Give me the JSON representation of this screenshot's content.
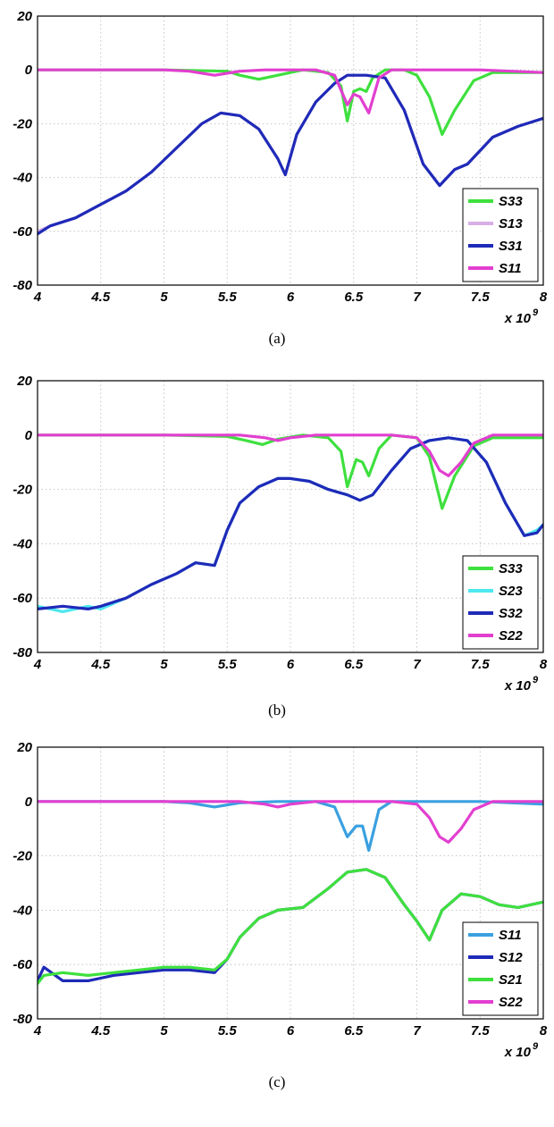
{
  "chart_data": [
    {
      "type": "line",
      "caption": "(a)",
      "x_scale_label": "x 10",
      "x_scale_exponent": "9",
      "xlim": [
        4,
        8
      ],
      "ylim": [
        -80,
        20
      ],
      "x_ticks": [
        "4",
        "4.5",
        "5",
        "5.5",
        "6",
        "6.5",
        "7",
        "7.5",
        "8"
      ],
      "y_ticks": [
        "20",
        "0",
        "-20",
        "-40",
        "-60",
        "-80"
      ],
      "grid": true,
      "legend_position": "bottom-right",
      "series": [
        {
          "name": "S33",
          "color": "#3ee03e",
          "x": [
            4,
            5,
            5.5,
            5.6,
            5.75,
            5.9,
            6.1,
            6.3,
            6.4,
            6.45,
            6.5,
            6.55,
            6.6,
            6.65,
            6.75,
            6.9,
            7.0,
            7.1,
            7.2,
            7.3,
            7.45,
            7.6,
            8
          ],
          "y": [
            0,
            0,
            -0.5,
            -2,
            -3.5,
            -2,
            0,
            -1,
            -6,
            -19,
            -8,
            -7,
            -8,
            -3,
            0,
            0,
            -2,
            -10,
            -24,
            -15,
            -4,
            -1,
            -1
          ]
        },
        {
          "name": "S13",
          "color": "#d8aee8",
          "x": [
            4,
            4.1,
            4.3,
            4.5,
            4.7,
            4.9,
            5.1,
            5.3,
            5.45,
            5.6,
            5.75,
            5.9,
            5.96,
            6.05,
            6.2,
            6.35,
            6.45,
            6.6,
            6.75,
            6.9,
            7.05,
            7.18,
            7.3,
            7.4,
            7.5,
            7.6,
            7.8,
            8
          ],
          "y": [
            -60,
            -58,
            -55,
            -50,
            -45,
            -38,
            -29,
            -20,
            -16,
            -17,
            -22,
            -33,
            -39,
            -24,
            -12,
            -5,
            -2,
            -2,
            -3,
            -15,
            -35,
            -43,
            -37,
            -35,
            -30,
            -25,
            -21,
            -18
          ]
        },
        {
          "name": "S31",
          "color": "#1f2ab8",
          "x": [
            4,
            4.1,
            4.3,
            4.5,
            4.7,
            4.9,
            5.1,
            5.3,
            5.45,
            5.6,
            5.75,
            5.9,
            5.96,
            6.05,
            6.2,
            6.35,
            6.45,
            6.6,
            6.75,
            6.9,
            7.05,
            7.18,
            7.3,
            7.4,
            7.5,
            7.6,
            7.8,
            8
          ],
          "y": [
            -61,
            -58,
            -55,
            -50,
            -45,
            -38,
            -29,
            -20,
            -16,
            -17,
            -22,
            -33,
            -39,
            -24,
            -12,
            -5,
            -2,
            -2,
            -3,
            -15,
            -35,
            -43,
            -37,
            -35,
            -30,
            -25,
            -21,
            -18
          ]
        },
        {
          "name": "S11",
          "color": "#e23fd0",
          "x": [
            4,
            5,
            5.2,
            5.4,
            5.6,
            5.8,
            6.2,
            6.35,
            6.45,
            6.5,
            6.55,
            6.62,
            6.7,
            6.8,
            7.5,
            8
          ],
          "y": [
            0,
            0,
            -0.5,
            -2,
            -0.5,
            0,
            0,
            -2,
            -13,
            -9,
            -10,
            -16,
            -3,
            0,
            0,
            -1
          ]
        }
      ]
    },
    {
      "type": "line",
      "caption": "(b)",
      "x_scale_label": "x 10",
      "x_scale_exponent": "9",
      "xlim": [
        4,
        8
      ],
      "ylim": [
        -80,
        20
      ],
      "x_ticks": [
        "4",
        "4.5",
        "5",
        "5.5",
        "6",
        "6.5",
        "7",
        "7.5",
        "8"
      ],
      "y_ticks": [
        "20",
        "0",
        "-20",
        "-40",
        "-60",
        "-80"
      ],
      "grid": true,
      "legend_position": "bottom-right",
      "series": [
        {
          "name": "S33",
          "color": "#3ee03e",
          "x": [
            4,
            5,
            5.5,
            5.65,
            5.78,
            5.9,
            6.1,
            6.3,
            6.4,
            6.45,
            6.52,
            6.57,
            6.62,
            6.7,
            6.8,
            7.0,
            7.1,
            7.2,
            7.3,
            7.45,
            7.6,
            8
          ],
          "y": [
            0,
            0,
            -0.5,
            -2,
            -3.5,
            -1.5,
            0,
            -1,
            -6,
            -19,
            -9,
            -10,
            -15,
            -5,
            0,
            -1,
            -8,
            -27,
            -15,
            -4,
            -1,
            -1
          ]
        },
        {
          "name": "S23",
          "color": "#4de8f0",
          "x": [
            4,
            4.2,
            4.4,
            4.5,
            4.7,
            4.9,
            5.1,
            5.25,
            5.4,
            5.5,
            5.6,
            5.75,
            5.9,
            6.0,
            6.15,
            6.3,
            6.45,
            6.55,
            6.65,
            6.8,
            6.95,
            7.1,
            7.25,
            7.4,
            7.55,
            7.7,
            7.85,
            7.95,
            8
          ],
          "y": [
            -63,
            -65,
            -63,
            -64,
            -60,
            -55,
            -51,
            -47,
            -48,
            -35,
            -25,
            -19,
            -16,
            -16,
            -17,
            -20,
            -22,
            -24,
            -22,
            -13,
            -5,
            -2,
            -1,
            -2,
            -10,
            -25,
            -37,
            -35,
            -33
          ]
        },
        {
          "name": "S32",
          "color": "#1f2ab8",
          "x": [
            4,
            4.2,
            4.4,
            4.5,
            4.7,
            4.9,
            5.1,
            5.25,
            5.4,
            5.5,
            5.6,
            5.75,
            5.9,
            6.0,
            6.15,
            6.3,
            6.45,
            6.55,
            6.65,
            6.8,
            6.95,
            7.1,
            7.25,
            7.4,
            7.55,
            7.7,
            7.85,
            7.95,
            8
          ],
          "y": [
            -64,
            -63,
            -64,
            -63,
            -60,
            -55,
            -51,
            -47,
            -48,
            -35,
            -25,
            -19,
            -16,
            -16,
            -17,
            -20,
            -22,
            -24,
            -22,
            -13,
            -5,
            -2,
            -1,
            -2,
            -10,
            -25,
            -37,
            -36,
            -33
          ]
        },
        {
          "name": "S22",
          "color": "#e23fd0",
          "x": [
            4,
            5,
            5.6,
            5.8,
            5.9,
            6.0,
            6.2,
            6.8,
            7.0,
            7.1,
            7.18,
            7.25,
            7.35,
            7.45,
            7.6,
            8
          ],
          "y": [
            0,
            0,
            0,
            -1,
            -2,
            -1,
            0,
            0,
            -1,
            -6,
            -13,
            -15,
            -10,
            -3,
            0,
            0
          ]
        }
      ]
    },
    {
      "type": "line",
      "caption": "(c)",
      "x_scale_label": "x 10",
      "x_scale_exponent": "9",
      "xlim": [
        4,
        8
      ],
      "ylim": [
        -80,
        20
      ],
      "x_ticks": [
        "4",
        "4.5",
        "5",
        "5.5",
        "6",
        "6.5",
        "7",
        "7.5",
        "8"
      ],
      "y_ticks": [
        "20",
        "0",
        "-20",
        "-40",
        "-60",
        "-80"
      ],
      "grid": true,
      "legend_position": "bottom-right",
      "series": [
        {
          "name": "S11",
          "color": "#3aa0e0",
          "x": [
            4,
            5,
            5.2,
            5.4,
            5.6,
            5.9,
            6.2,
            6.35,
            6.45,
            6.52,
            6.57,
            6.62,
            6.7,
            6.8,
            7.5,
            8
          ],
          "y": [
            0,
            0,
            -0.5,
            -2,
            -0.5,
            0,
            0,
            -2,
            -13,
            -9,
            -9,
            -18,
            -3,
            0,
            0,
            -1
          ]
        },
        {
          "name": "S12",
          "color": "#1f2ab8",
          "x": [
            4,
            4.05,
            4.2,
            4.4,
            4.6,
            4.8,
            5.0,
            5.2,
            5.4,
            5.5,
            5.6,
            5.75,
            5.9,
            6.1,
            6.3,
            6.45,
            6.6,
            6.75,
            6.9,
            7.0,
            7.1,
            7.2,
            7.35,
            7.5,
            7.65,
            7.8,
            8
          ],
          "y": [
            -66,
            -61,
            -66,
            -66,
            -64,
            -63,
            -62,
            -62,
            -63,
            -58,
            -50,
            -43,
            -40,
            -39,
            -32,
            -26,
            -25,
            -28,
            -38,
            -44,
            -51,
            -40,
            -34,
            -35,
            -38,
            -39,
            -37
          ]
        },
        {
          "name": "S21",
          "color": "#3ee03e",
          "x": [
            4,
            4.05,
            4.2,
            4.4,
            4.6,
            4.8,
            5.0,
            5.2,
            5.4,
            5.5,
            5.6,
            5.75,
            5.9,
            6.1,
            6.3,
            6.45,
            6.6,
            6.75,
            6.9,
            7.0,
            7.1,
            7.2,
            7.35,
            7.5,
            7.65,
            7.8,
            8
          ],
          "y": [
            -67,
            -64,
            -63,
            -64,
            -63,
            -62,
            -61,
            -61,
            -62,
            -58,
            -50,
            -43,
            -40,
            -39,
            -32,
            -26,
            -25,
            -28,
            -38,
            -44,
            -51,
            -40,
            -34,
            -35,
            -38,
            -39,
            -37
          ]
        },
        {
          "name": "S22",
          "color": "#e23fd0",
          "x": [
            4,
            5,
            5.6,
            5.8,
            5.9,
            6.0,
            6.2,
            6.8,
            7.0,
            7.1,
            7.18,
            7.25,
            7.35,
            7.45,
            7.6,
            8
          ],
          "y": [
            0,
            0,
            0,
            -1,
            -2,
            -1,
            0,
            0,
            -1,
            -6,
            -13,
            -15,
            -10,
            -3,
            0,
            0
          ]
        }
      ]
    }
  ]
}
